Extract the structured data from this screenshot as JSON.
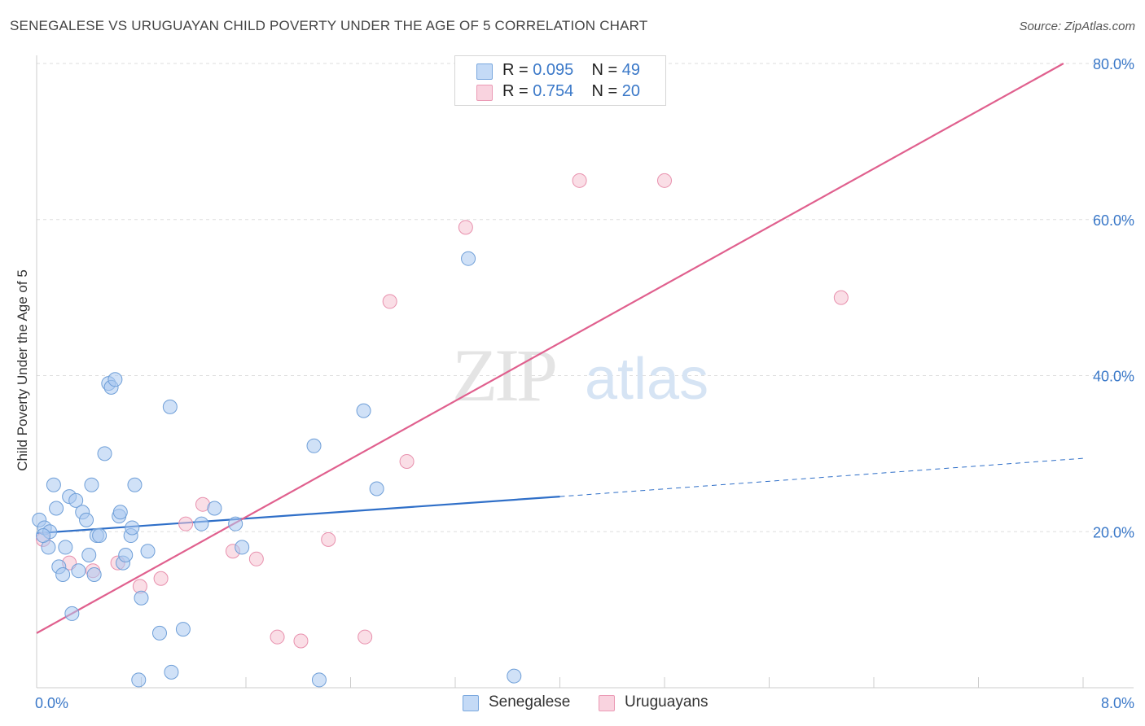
{
  "title": "SENEGALESE VS URUGUAYAN CHILD POVERTY UNDER THE AGE OF 5 CORRELATION CHART",
  "source": "Source: ZipAtlas.com",
  "watermark": {
    "zip": "ZIP",
    "atlas": "atlas"
  },
  "legend": {
    "rows": [
      {
        "r_label": "R = ",
        "r_value": "0.095",
        "n_label": "N = ",
        "n_value": "49"
      },
      {
        "r_label": "R = ",
        "r_value": "0.754",
        "n_label": "N = ",
        "n_value": "20"
      }
    ]
  },
  "colors": {
    "senegalese_fill": "#a9c8f0",
    "senegalese_stroke": "#6f9fd8",
    "senegalese_line": "#2f6fc8",
    "uruguayan_fill": "#f6c2d2",
    "uruguayan_stroke": "#e890ad",
    "uruguayan_line": "#e0608e",
    "tick_label": "#3a78c8",
    "grid": "#dddddd"
  },
  "chart_data": {
    "type": "scatter",
    "xlabel": "",
    "ylabel": "Child Poverty Under the Age of 5",
    "xlim": [
      0,
      8
    ],
    "ylim": [
      0,
      80
    ],
    "x_tick_labels": [
      "0.0%",
      "8.0%"
    ],
    "y_ticks": [
      20,
      40,
      60,
      80
    ],
    "y_tick_labels": [
      "20.0%",
      "40.0%",
      "60.0%",
      "80.0%"
    ],
    "grid": true,
    "series": [
      {
        "name": "Senegalese",
        "points": [
          [
            0.02,
            21.5
          ],
          [
            0.06,
            20.5
          ],
          [
            0.09,
            18.0
          ],
          [
            0.1,
            20.0
          ],
          [
            0.13,
            26.0
          ],
          [
            0.15,
            23.0
          ],
          [
            0.17,
            15.5
          ],
          [
            0.2,
            14.5
          ],
          [
            0.22,
            18.0
          ],
          [
            0.25,
            24.5
          ],
          [
            0.27,
            9.5
          ],
          [
            0.3,
            24.0
          ],
          [
            0.32,
            15.0
          ],
          [
            0.35,
            22.5
          ],
          [
            0.38,
            21.5
          ],
          [
            0.4,
            17.0
          ],
          [
            0.42,
            26.0
          ],
          [
            0.44,
            14.5
          ],
          [
            0.46,
            19.5
          ],
          [
            0.48,
            19.5
          ],
          [
            0.52,
            30.0
          ],
          [
            0.55,
            39.0
          ],
          [
            0.57,
            38.5
          ],
          [
            0.6,
            39.5
          ],
          [
            0.63,
            22.0
          ],
          [
            0.64,
            22.5
          ],
          [
            0.66,
            16.0
          ],
          [
            0.68,
            17.0
          ],
          [
            0.72,
            19.5
          ],
          [
            0.73,
            20.5
          ],
          [
            0.75,
            26.0
          ],
          [
            0.78,
            1.0
          ],
          [
            0.8,
            11.5
          ],
          [
            0.85,
            17.5
          ],
          [
            0.94,
            7.0
          ],
          [
            1.02,
            36.0
          ],
          [
            1.03,
            2.0
          ],
          [
            1.12,
            7.5
          ],
          [
            1.26,
            21.0
          ],
          [
            1.36,
            23.0
          ],
          [
            1.52,
            21.0
          ],
          [
            1.57,
            18.0
          ],
          [
            2.12,
            31.0
          ],
          [
            2.16,
            1.0
          ],
          [
            2.5,
            35.5
          ],
          [
            2.6,
            25.5
          ],
          [
            3.3,
            55.0
          ],
          [
            3.65,
            1.5
          ],
          [
            0.05,
            19.5
          ]
        ],
        "trend": {
          "x0": 0,
          "y0": 19.8,
          "x1": 4.0,
          "y1": 24.5,
          "dash_x1": 8.0,
          "dash_y1": 29.4
        }
      },
      {
        "name": "Uruguayans",
        "points": [
          [
            0.05,
            19.0
          ],
          [
            0.25,
            16.0
          ],
          [
            0.43,
            15.0
          ],
          [
            0.62,
            16.0
          ],
          [
            0.79,
            13.0
          ],
          [
            0.95,
            14.0
          ],
          [
            1.14,
            21.0
          ],
          [
            1.27,
            23.5
          ],
          [
            1.5,
            17.5
          ],
          [
            1.68,
            16.5
          ],
          [
            1.84,
            6.5
          ],
          [
            2.02,
            6.0
          ],
          [
            2.23,
            19.0
          ],
          [
            2.51,
            6.5
          ],
          [
            2.7,
            49.5
          ],
          [
            2.83,
            29.0
          ],
          [
            3.28,
            59.0
          ],
          [
            4.15,
            65.0
          ],
          [
            4.8,
            65.0
          ],
          [
            6.15,
            50.0
          ]
        ],
        "trend": {
          "x0": 0,
          "y0": 7.0,
          "x1": 7.85,
          "y1": 80.0
        }
      }
    ]
  }
}
